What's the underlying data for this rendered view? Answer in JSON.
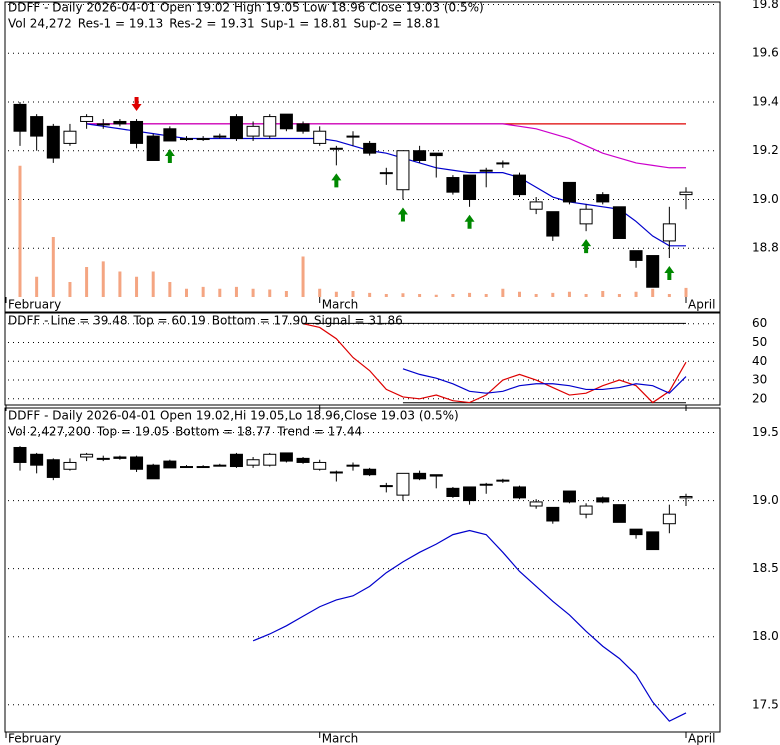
{
  "chart_data": [
    {
      "type": "candlestick",
      "title": "DDFF - Daily 2026-04-01 Open 19.02  High 19.05  Low 18.96  Close 19.03 (0.5%)",
      "legend": [
        {
          "text": "Vol 24,272",
          "color": "#000000"
        },
        {
          "text": "Res-1 = 19.13",
          "color": "#cc00cc"
        },
        {
          "text": "Res-2 = 19.31",
          "color": "#dd0000"
        },
        {
          "text": "Sup-1 = 18.81",
          "color": "#0000cc"
        },
        {
          "text": "Sup-2 = 18.81",
          "color": "#008800"
        }
      ],
      "open": [
        19.39,
        19.34,
        19.3,
        19.23,
        19.32,
        19.31,
        19.32,
        19.32,
        19.26,
        19.29,
        19.25,
        19.25,
        19.26,
        19.34,
        19.26,
        19.26,
        19.35,
        19.31,
        19.23,
        19.21,
        19.26,
        19.23,
        19.11,
        19.04,
        19.2,
        19.19,
        19.09,
        19.1,
        19.12,
        19.15,
        19.1,
        18.96,
        18.95,
        19.07,
        18.9,
        19.02,
        18.97,
        18.79,
        18.77,
        18.83,
        19.02
      ],
      "high": [
        19.4,
        19.35,
        19.31,
        19.31,
        19.35,
        19.33,
        19.33,
        19.33,
        19.27,
        19.3,
        19.26,
        19.26,
        19.27,
        19.35,
        19.32,
        19.35,
        19.35,
        19.32,
        19.3,
        19.22,
        19.28,
        19.24,
        19.13,
        19.2,
        19.22,
        19.19,
        19.1,
        19.1,
        19.13,
        19.16,
        19.11,
        19.01,
        18.95,
        19.07,
        18.98,
        19.03,
        18.97,
        18.79,
        18.77,
        18.97,
        19.05
      ],
      "low": [
        19.22,
        19.2,
        19.15,
        19.22,
        19.29,
        19.29,
        19.3,
        19.21,
        19.16,
        19.24,
        19.24,
        19.24,
        19.25,
        19.24,
        19.24,
        19.25,
        19.28,
        19.27,
        19.22,
        19.14,
        19.22,
        19.18,
        19.06,
        19.0,
        19.15,
        19.09,
        19.02,
        18.97,
        19.05,
        19.13,
        19.01,
        18.94,
        18.83,
        18.98,
        18.87,
        18.98,
        18.84,
        18.72,
        18.64,
        18.76,
        18.96
      ],
      "close": [
        19.28,
        19.26,
        19.17,
        19.28,
        19.34,
        19.31,
        19.31,
        19.23,
        19.16,
        19.24,
        19.25,
        19.25,
        19.26,
        19.25,
        19.3,
        19.34,
        19.29,
        19.28,
        19.28,
        19.21,
        19.26,
        19.19,
        19.11,
        19.2,
        19.16,
        19.18,
        19.03,
        19.0,
        19.12,
        19.15,
        19.02,
        18.99,
        18.85,
        18.99,
        18.96,
        18.99,
        18.84,
        18.75,
        18.64,
        18.9,
        19.03
      ],
      "volume": [
        350000,
        54000,
        160000,
        40000,
        80000,
        95000,
        68000,
        54000,
        68000,
        40000,
        22000,
        27000,
        22000,
        27000,
        22000,
        20000,
        16000,
        108000,
        22000,
        14000,
        16000,
        11000,
        8000,
        10000,
        8000,
        6000,
        8000,
        11000,
        8000,
        22000,
        14000,
        8000,
        11000,
        14000,
        8000,
        16000,
        8000,
        14000,
        22000,
        8000,
        24272
      ],
      "volume_lim": [
        0,
        400000
      ],
      "volume_color": "#f4a582",
      "series": [
        {
          "color": "#dd0000",
          "values": [
            null,
            null,
            null,
            null,
            19.31,
            19.31,
            19.31,
            19.31,
            19.31,
            19.31,
            19.31,
            19.31,
            19.31,
            19.31,
            19.31,
            19.31,
            19.31,
            19.31,
            19.31,
            19.31,
            19.31,
            19.31,
            19.31,
            19.31,
            19.31,
            19.31,
            19.31,
            19.31,
            19.31,
            19.31,
            19.31,
            19.31,
            19.31,
            19.31,
            19.31,
            19.31,
            19.31,
            19.31,
            19.31,
            19.31,
            19.31
          ]
        },
        {
          "color": "#cc00cc",
          "values": [
            null,
            null,
            null,
            null,
            19.31,
            19.31,
            19.31,
            19.31,
            19.31,
            19.31,
            19.31,
            19.31,
            19.31,
            19.31,
            19.31,
            19.31,
            19.31,
            19.31,
            19.31,
            19.31,
            19.31,
            19.31,
            19.31,
            19.31,
            19.31,
            19.31,
            19.31,
            19.31,
            19.31,
            19.31,
            19.3,
            19.29,
            19.27,
            19.25,
            19.22,
            19.19,
            19.17,
            19.15,
            19.14,
            19.13,
            19.13
          ]
        },
        {
          "color": "#0000cc",
          "values": [
            null,
            null,
            null,
            null,
            19.31,
            19.3,
            19.29,
            19.28,
            19.27,
            19.26,
            19.25,
            19.25,
            19.25,
            19.25,
            19.25,
            19.25,
            19.25,
            19.25,
            19.25,
            19.24,
            19.22,
            19.2,
            19.19,
            19.17,
            19.15,
            19.13,
            19.12,
            19.11,
            19.11,
            19.11,
            19.09,
            19.05,
            19.01,
            18.99,
            18.98,
            18.97,
            18.96,
            18.91,
            18.85,
            18.81,
            18.81
          ]
        }
      ],
      "buy_signals": [
        9,
        19,
        23,
        27,
        34,
        39
      ],
      "sell_signals": [
        7
      ],
      "buy_color": "#008800",
      "sell_color": "#dd0000",
      "xticks": [
        {
          "value": 0,
          "label": "February"
        },
        {
          "value": 18,
          "label": "March"
        },
        {
          "value": 40,
          "label": "April"
        }
      ],
      "ylim": [
        18.6,
        19.81
      ],
      "yticks": [
        18.8,
        {
          "value": 19,
          "label": "19.0"
        },
        19.2,
        19.4,
        19.6,
        19.8
      ]
    },
    {
      "type": "line",
      "title": "DDFF - ",
      "legend": [
        {
          "text": "Line = 39.48",
          "color": "#dd0000"
        },
        {
          "text": "Top = 60.19",
          "color": "#000000"
        },
        {
          "text": "Bottom = 17.90",
          "color": "#000000"
        },
        {
          "text": "Signal = 31.86",
          "color": "#0000cc"
        }
      ],
      "series": [
        {
          "color": "#dd0000",
          "values": [
            null,
            null,
            null,
            null,
            null,
            null,
            null,
            null,
            null,
            null,
            null,
            null,
            null,
            null,
            null,
            null,
            null,
            60,
            58,
            52,
            42,
            35,
            25,
            21,
            20,
            22,
            19,
            18,
            22,
            30,
            33,
            30,
            26,
            22,
            23,
            27,
            30,
            27,
            18,
            24,
            39.48
          ]
        },
        {
          "color": "#0000cc",
          "values": [
            null,
            null,
            null,
            null,
            null,
            null,
            null,
            null,
            null,
            null,
            null,
            null,
            null,
            null,
            null,
            null,
            null,
            null,
            null,
            null,
            null,
            null,
            null,
            36,
            33,
            31,
            28,
            24,
            23,
            24,
            27,
            28,
            28,
            27,
            25,
            25,
            26,
            28,
            27,
            23,
            31.86
          ]
        }
      ],
      "top": 60.19,
      "bottom": 17.9,
      "ylim": [
        16.7,
        65.7
      ],
      "yticks": [
        20,
        30,
        40,
        50,
        60
      ]
    },
    {
      "type": "candlestick",
      "title": "DDFF - Daily 2026-04-01 Open 19.02,Hi 19.05,Lo 18.96,Close 19.03 (0.5%)",
      "legend": [
        {
          "text": "Vol 2,427,200",
          "color": "#000000"
        },
        {
          "text": "Top = 19.05",
          "color": "#dd0000"
        },
        {
          "text": "Bottom = 18.77",
          "color": "#008800"
        },
        {
          "text": "Trend = 17.44",
          "color": "#0000cc"
        }
      ],
      "series": [
        {
          "color": "#0000cc",
          "values": [
            null,
            null,
            null,
            null,
            null,
            null,
            null,
            null,
            null,
            null,
            null,
            null,
            null,
            null,
            17.97,
            18.02,
            18.08,
            18.15,
            18.22,
            18.27,
            18.3,
            18.37,
            18.47,
            18.55,
            18.62,
            18.68,
            18.75,
            18.78,
            18.75,
            18.62,
            18.48,
            18.37,
            18.26,
            18.16,
            18.04,
            17.93,
            17.84,
            17.72,
            17.52,
            17.38,
            17.44
          ]
        }
      ],
      "ylim": [
        17.3,
        19.68
      ],
      "yticks": [
        17.5,
        {
          "value": 18,
          "label": "18.0"
        },
        18.5,
        {
          "value": 19,
          "label": "19.0"
        },
        19.5
      ]
    }
  ]
}
